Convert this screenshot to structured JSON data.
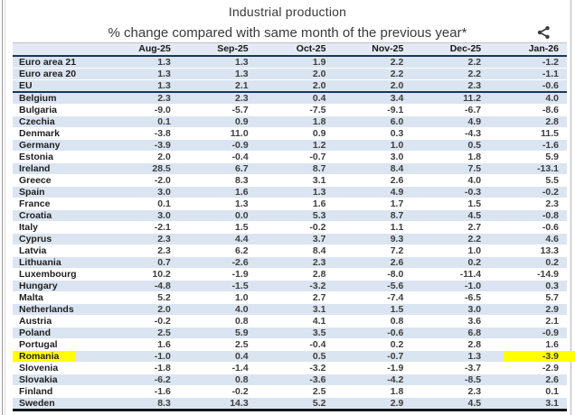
{
  "chart_data": {
    "type": "table",
    "title": "Industrial production",
    "subtitle": "% change compared with same month of the previous year*",
    "columns": [
      "Aug-25",
      "Sep-25",
      "Oct-25",
      "Nov-25",
      "Dec-25",
      "Jan-26"
    ],
    "rows": [
      {
        "name": "Euro area 21",
        "values": [
          "1.3",
          "1.3",
          "1.9",
          "2.2",
          "2.2",
          "-1.2"
        ]
      },
      {
        "name": "Euro area 20",
        "values": [
          "1.3",
          "1.3",
          "2.0",
          "2.2",
          "2.2",
          "-1.1"
        ]
      },
      {
        "name": "EU",
        "values": [
          "1.3",
          "2.1",
          "2.0",
          "2.0",
          "2.3",
          "-0.6"
        ],
        "separator_below": true
      },
      {
        "name": "Belgium",
        "values": [
          "2.3",
          "2.3",
          "0.4",
          "3.4",
          "11.2",
          "4.0"
        ]
      },
      {
        "name": "Bulgaria",
        "values": [
          "-9.0",
          "-5.7",
          "-7.5",
          "-9.1",
          "-6.7",
          "-8.6"
        ]
      },
      {
        "name": "Czechia",
        "values": [
          "0.1",
          "0.9",
          "1.8",
          "6.0",
          "4.9",
          "2.8"
        ]
      },
      {
        "name": "Denmark",
        "values": [
          "-3.8",
          "11.0",
          "0.9",
          "0.3",
          "-4.3",
          "11.5"
        ]
      },
      {
        "name": "Germany",
        "values": [
          "-3.9",
          "-0.9",
          "1.2",
          "1.0",
          "0.5",
          "-1.6"
        ]
      },
      {
        "name": "Estonia",
        "values": [
          "2.0",
          "-0.4",
          "-0.7",
          "3.0",
          "1.8",
          "5.9"
        ]
      },
      {
        "name": "Ireland",
        "values": [
          "28.5",
          "6.7",
          "8.7",
          "8.4",
          "7.5",
          "-13.1"
        ]
      },
      {
        "name": "Greece",
        "values": [
          "-2.0",
          "8.3",
          "3.1",
          "2.6",
          "4.0",
          "5.5"
        ]
      },
      {
        "name": "Spain",
        "values": [
          "3.0",
          "1.6",
          "1.3",
          "4.9",
          "-0.3",
          "-0.2"
        ]
      },
      {
        "name": "France",
        "values": [
          "0.1",
          "1.3",
          "1.6",
          "1.7",
          "1.5",
          "2.3"
        ]
      },
      {
        "name": "Croatia",
        "values": [
          "3.0",
          "0.0",
          "5.3",
          "8.7",
          "4.5",
          "-0.8"
        ]
      },
      {
        "name": "Italy",
        "values": [
          "-2.1",
          "1.5",
          "-0.2",
          "1.1",
          "2.7",
          "-0.6"
        ]
      },
      {
        "name": "Cyprus",
        "values": [
          "2.3",
          "4.4",
          "3.7",
          "9.3",
          "2.2",
          "4.6"
        ]
      },
      {
        "name": "Latvia",
        "values": [
          "2.3",
          "6.2",
          "8.4",
          "7.2",
          "1.0",
          "13.3"
        ]
      },
      {
        "name": "Lithuania",
        "values": [
          "0.7",
          "-2.6",
          "2.3",
          "2.6",
          "0.2",
          "0.2"
        ]
      },
      {
        "name": "Luxembourg",
        "values": [
          "10.2",
          "-1.9",
          "2.8",
          "-8.0",
          "-11.4",
          "-14.9"
        ]
      },
      {
        "name": "Hungary",
        "values": [
          "-4.8",
          "-1.5",
          "-3.2",
          "-5.6",
          "-1.0",
          "0.3"
        ]
      },
      {
        "name": "Malta",
        "values": [
          "5.2",
          "1.0",
          "2.7",
          "-7.4",
          "-6.5",
          "5.7"
        ]
      },
      {
        "name": "Netherlands",
        "values": [
          "2.0",
          "4.0",
          "3.1",
          "1.5",
          "3.0",
          "2.9"
        ]
      },
      {
        "name": "Austria",
        "values": [
          "-0.2",
          "0.8",
          "4.1",
          "0.8",
          "3.6",
          "2.1"
        ]
      },
      {
        "name": "Poland",
        "values": [
          "2.5",
          "5.9",
          "3.5",
          "-0.6",
          "6.8",
          "-0.9"
        ]
      },
      {
        "name": "Portugal",
        "values": [
          "1.6",
          "2.5",
          "-0.4",
          "0.2",
          "2.8",
          "1.6"
        ]
      },
      {
        "name": "Romania",
        "values": [
          "-1.0",
          "0.4",
          "0.5",
          "-0.7",
          "1.3",
          "-3.9"
        ],
        "highlighted": true
      },
      {
        "name": "Slovenia",
        "values": [
          "-1.8",
          "-1.4",
          "-3.2",
          "-1.9",
          "-3.7",
          "-2.9"
        ]
      },
      {
        "name": "Slovakia",
        "values": [
          "-6.2",
          "0.8",
          "-3.6",
          "-4.2",
          "-8.5",
          "2.6"
        ]
      },
      {
        "name": "Finland",
        "values": [
          "-1.6",
          "-0.2",
          "2.5",
          "1.8",
          "2.3",
          "0.1"
        ]
      },
      {
        "name": "Sweden",
        "values": [
          "8.3",
          "14.3",
          "5.2",
          "2.9",
          "4.5",
          "3.1"
        ]
      }
    ],
    "highlight": {
      "row": "Romania",
      "highlighted_cells": [
        "row-label",
        "Jan-26"
      ],
      "color": "#ffff00"
    },
    "layout_hints": {
      "grid": "striped-rows",
      "legend": "none"
    }
  },
  "icons": {
    "share": "share-icon"
  },
  "colors": {
    "stripe": "#dbe5f1",
    "accent_line": "#17375e",
    "bottom_line": "#161616",
    "highlight": "#ffff00",
    "text": "#3d3d3d"
  }
}
